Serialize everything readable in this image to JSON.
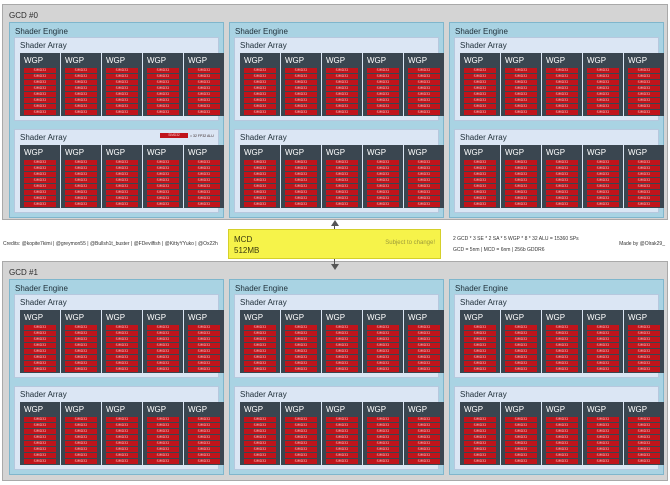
{
  "gcds": [
    {
      "title": "GCD #0"
    },
    {
      "title": "GCD #1"
    }
  ],
  "labels": {
    "shader_engine": "Shader Engine",
    "shader_array": "Shader Array",
    "wgp": "WGP",
    "cu": "SIMD32"
  },
  "legend": {
    "swatch": "SIMD32",
    "text": "= 32 FP32 ALU"
  },
  "mcd": {
    "title": "MCD",
    "size": "512MB",
    "note": "Subject to change!"
  },
  "credits": "Credits: @kopite7kimi | @greymon55 | @Bullsh1t_buster | @FDevilfish | @KittyYYuko | @Ox22h",
  "formula": "2 GCD * 3 SE * 2 SA * 5 WGP * 8 * 32 ALU = 15360 SPs",
  "specs": "GCD = 5nm | MCD = 6nm | 256b GDDR6",
  "made_by": "Made by @Olrak29_",
  "colors": {
    "gcd_bg": "#d4d4d4",
    "shader_engine_bg": "#a9d3e3",
    "shader_array_bg": "#dbe6f4",
    "wgp_bg": "#3a4650",
    "simd_red": "#c0141b",
    "mcd_yellow": "#f6f34a"
  }
}
